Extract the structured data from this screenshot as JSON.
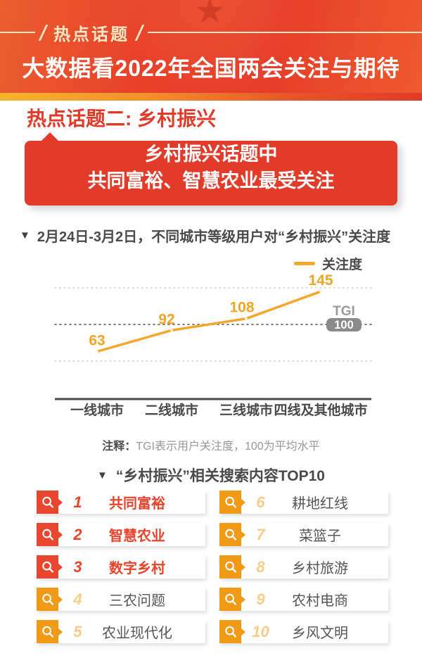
{
  "header": {
    "badge": "热点话题",
    "title": "大数据看2022年全国两会关注与期待"
  },
  "section": {
    "title": "热点话题二: 乡村振兴",
    "callout_line1": "乡村振兴话题中",
    "callout_line2": "共同富裕、智慧农业最受关注"
  },
  "chart": {
    "marker": "▼",
    "title": "2月24日-3月2日，不同城市等级用户对“乡村振兴”关注度",
    "legend": "关注度",
    "tgi_label": "TGI",
    "tgi_value": "100"
  },
  "chart_data": {
    "type": "line",
    "title": "2月24日-3月2日，不同城市等级用户对“乡村振兴”关注度",
    "categories": [
      "一线城市",
      "二线城市",
      "三线城市",
      "四线及其他城市"
    ],
    "series": [
      {
        "name": "关注度",
        "values": [
          63,
          92,
          108,
          145
        ]
      }
    ],
    "reference_line": {
      "label": "TGI",
      "value": 100,
      "note": "100为平均水平"
    },
    "gridlines": [
      50,
      100,
      150
    ],
    "ylim": [
      30,
      170
    ],
    "legend_position": "top-right",
    "line_color": "#F5A62B"
  },
  "note": {
    "prefix": "注释：",
    "text": "TGI表示用户关注度，100为平均水平"
  },
  "top10": {
    "marker": "▼",
    "title": "“乡村振兴”相关搜索内容TOP10",
    "items": [
      {
        "rank": "1",
        "label": "共同富裕"
      },
      {
        "rank": "2",
        "label": "智慧农业"
      },
      {
        "rank": "3",
        "label": "数字乡村"
      },
      {
        "rank": "4",
        "label": "三农问题"
      },
      {
        "rank": "5",
        "label": "农业现代化"
      },
      {
        "rank": "6",
        "label": "耕地红线"
      },
      {
        "rank": "7",
        "label": "菜篮子"
      },
      {
        "rank": "8",
        "label": "乡村旅游"
      },
      {
        "rank": "9",
        "label": "农村电商"
      },
      {
        "rank": "10",
        "label": "乡风文明"
      }
    ]
  },
  "colors": {
    "header_red": "#E7412A",
    "strip_gradient": [
      "#F6B42B",
      "#E23A27"
    ],
    "accent_red": "#E23B2A",
    "list_red": "#E8462E",
    "list_orange": "#F09A16",
    "rank_light_orange": "#F8CC8A",
    "line_orange": "#F5A62B",
    "text_dark": "#4A4A4A",
    "text_gray": "#999999",
    "badge_gray": "#8B8B8B",
    "cream": "#F8E8C6"
  },
  "icons": {
    "star": "★",
    "search": "magnifier"
  }
}
